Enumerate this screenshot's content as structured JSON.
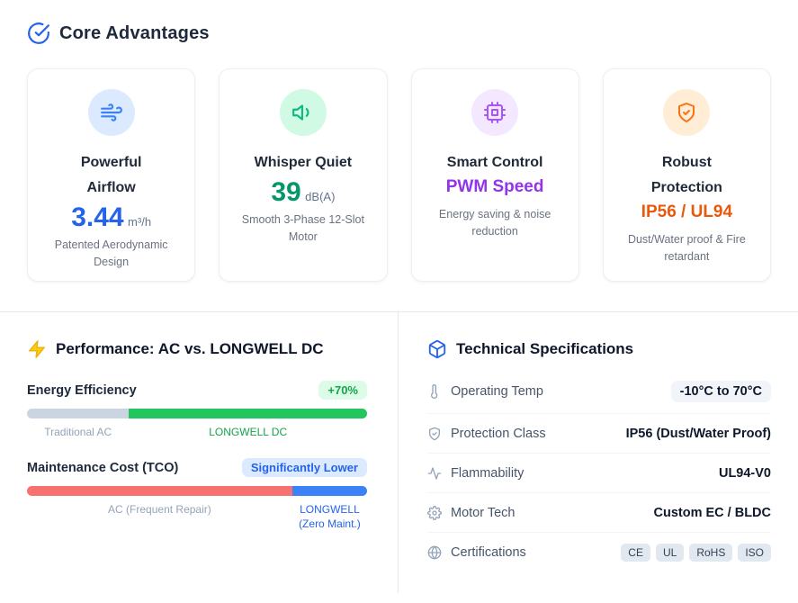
{
  "palette": {
    "accent_blue": "#2563eb",
    "accent_teal": "#059669",
    "accent_green": "#16a34a",
    "accent_purple": "#9333ea",
    "accent_orange": "#ea580c",
    "bolt_yellow": "#facc15",
    "bar_gray": "#cbd5e1",
    "bar_green": "#22c55e",
    "bar_red": "#f87171",
    "bar_blue": "#3b82f6"
  },
  "core": {
    "title": "Core Advantages",
    "cards": [
      {
        "icon": "wind-icon",
        "title": "Powerful Airflow",
        "value": "3.44",
        "unit": "m³/h",
        "desc": "Patented Aerodynamic Design"
      },
      {
        "icon": "volume-icon",
        "title": "Whisper Quiet",
        "value": "39",
        "unit": "dB(A)",
        "desc": "Smooth 3-Phase 12-Slot Motor"
      },
      {
        "icon": "cpu-icon",
        "title": "Smart Control",
        "value": "PWM Speed",
        "desc": "Energy saving & noise reduction"
      },
      {
        "icon": "shield-icon",
        "title": "Robust Protection",
        "value": "IP56 / UL94",
        "desc": "Dust/Water proof & Fire retardant"
      }
    ]
  },
  "performance": {
    "title": "Performance: AC vs. LONGWELL DC",
    "metrics": [
      {
        "label": "Energy Efficiency",
        "badge": "+70%",
        "segments": [
          {
            "name": "Traditional AC",
            "percent": 30
          },
          {
            "name": "LONGWELL DC",
            "percent": 70
          }
        ]
      },
      {
        "label": "Maintenance Cost (TCO)",
        "badge": "Significantly Lower",
        "segments": [
          {
            "name": "AC (Frequent Repair)",
            "percent": 78
          },
          {
            "name": "LONGWELL (Zero Maint.)",
            "percent": 22
          }
        ]
      }
    ]
  },
  "specs": {
    "title": "Technical Specifications",
    "rows": [
      {
        "icon": "thermometer-icon",
        "label": "Operating Temp",
        "value": "-10°C to 70°C"
      },
      {
        "icon": "shield-check-icon",
        "label": "Protection Class",
        "value": "IP56 (Dust/Water Proof)"
      },
      {
        "icon": "activity-icon",
        "label": "Flammability",
        "value": "UL94-V0"
      },
      {
        "icon": "gear-icon",
        "label": "Motor Tech",
        "value": "Custom EC / BLDC"
      },
      {
        "icon": "globe-icon",
        "label": "Certifications",
        "badges": [
          "CE",
          "UL",
          "RoHS",
          "ISO"
        ]
      }
    ]
  }
}
